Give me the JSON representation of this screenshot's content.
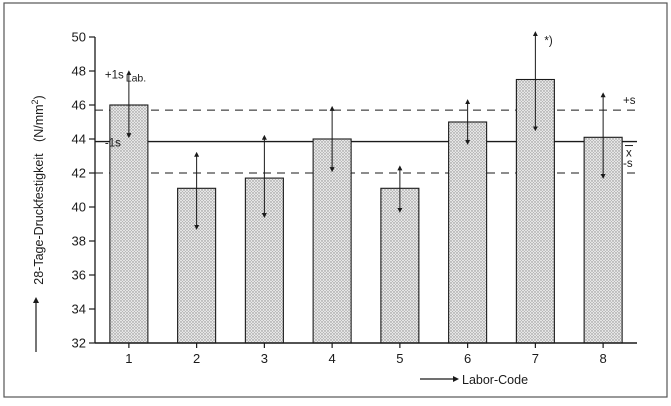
{
  "chart_data": {
    "type": "bar",
    "ylabel": "28-Tage-Druckfestigkeit",
    "ylabel_unit_base": "(N/mm",
    "ylabel_unit_exp": "2",
    "ylabel_unit_close": ")",
    "xlabel": "Labor-Code",
    "ylim": [
      32,
      50
    ],
    "yticks": [
      32,
      34,
      36,
      38,
      40,
      42,
      44,
      46,
      48,
      50
    ],
    "categories": [
      "1",
      "2",
      "3",
      "4",
      "5",
      "6",
      "7",
      "8"
    ],
    "values": [
      46.0,
      41.1,
      41.7,
      44.0,
      41.1,
      45.0,
      47.5,
      44.1
    ],
    "error_low": [
      44.2,
      38.8,
      39.5,
      42.2,
      39.8,
      43.8,
      44.6,
      41.8
    ],
    "error_high": [
      47.9,
      43.1,
      44.1,
      45.8,
      42.3,
      46.2,
      50.2,
      46.6
    ],
    "reference_lines": [
      {
        "name": "mean",
        "value": 43.85,
        "style": "solid",
        "label_text": "x",
        "label_overbar": true
      },
      {
        "name": "plus_s",
        "value": 45.7,
        "style": "dashed",
        "label_text": "+s"
      },
      {
        "name": "minus_s",
        "value": 42.0,
        "style": "dashed",
        "label_text": "-s"
      }
    ],
    "annotations": {
      "plus_one_s_base": "+1s",
      "plus_one_s_sub": "Lab.",
      "minus_one_s": "-1s",
      "outlier_mark": "*)"
    },
    "grid": false,
    "legend": "none",
    "colors": {
      "bar_fill": "#dcdcdc",
      "axis": "#1a1a1a",
      "frame": "#555555"
    }
  }
}
